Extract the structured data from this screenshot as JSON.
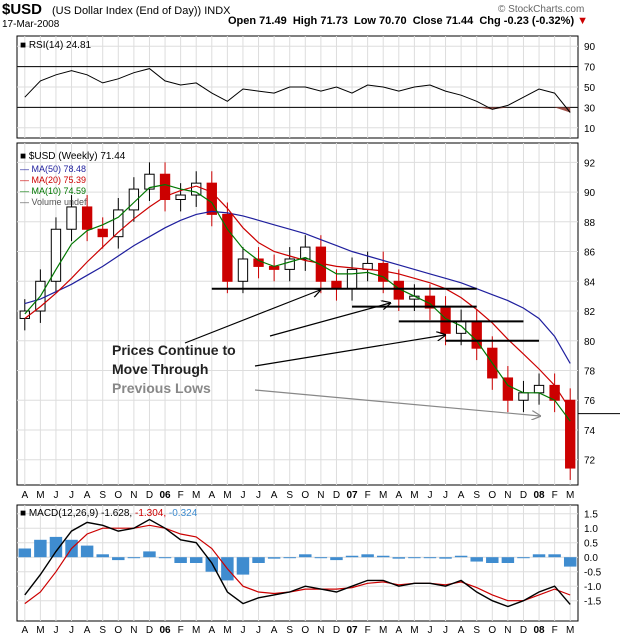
{
  "header": {
    "symbol": "$USD",
    "name": "(US Dollar Index (End of Day))",
    "exchange": "INDX",
    "date": "17-Mar-2008",
    "open": "Open 71.49",
    "high": "High 71.73",
    "low": "Low 70.70",
    "close": "Close 71.44",
    "change": "Chg -0.23 (-0.32%)",
    "brand": "© StockCharts.com"
  },
  "colors": {
    "price_up": "#000000",
    "price_down": "#cc0000",
    "ma50": "#1f1f9e",
    "ma20": "#cc0000",
    "ma10": "#007700",
    "rsi_oversold_fill": "#a0524a",
    "histogram": "#3f8ccf",
    "annotation": "#000000",
    "annotation_gray": "#888888"
  },
  "chart_data": [
    {
      "type": "line",
      "name": "rsi-panel",
      "label": "RSI(14) 24.81",
      "y_ticks": [
        90,
        70,
        50,
        30,
        10
      ],
      "ylim": [
        0,
        100
      ],
      "reference_lines": [
        70,
        30
      ],
      "x": [
        "2005-04",
        "2005-05",
        "2005-06",
        "2005-07",
        "2005-08",
        "2005-09",
        "2005-10",
        "2005-11",
        "2005-12",
        "2006-01",
        "2006-02",
        "2006-03",
        "2006-04",
        "2006-05",
        "2006-06",
        "2006-07",
        "2006-08",
        "2006-09",
        "2006-10",
        "2006-11",
        "2006-12",
        "2007-01",
        "2007-02",
        "2007-03",
        "2007-04",
        "2007-05",
        "2007-06",
        "2007-07",
        "2007-08",
        "2007-09",
        "2007-10",
        "2007-11",
        "2007-12",
        "2008-01",
        "2008-02",
        "2008-03"
      ],
      "series": [
        {
          "values": [
            40,
            56,
            62,
            66,
            62,
            54,
            58,
            64,
            68,
            56,
            52,
            54,
            44,
            36,
            48,
            46,
            44,
            50,
            50,
            46,
            50,
            44,
            52,
            50,
            46,
            50,
            52,
            46,
            42,
            36,
            28,
            32,
            40,
            48,
            44,
            25
          ]
        }
      ]
    },
    {
      "type": "candlestick",
      "name": "price-panel",
      "title": "$USD (Weekly) 71.44",
      "y_ticks": [
        92,
        90,
        88,
        86,
        84,
        82,
        80,
        78,
        76,
        74,
        72
      ],
      "ylim": [
        70.3,
        93.3
      ],
      "x_labels": [
        "A",
        "M",
        "J",
        "J",
        "A",
        "S",
        "O",
        "N",
        "D",
        "06",
        "F",
        "M",
        "A",
        "M",
        "J",
        "J",
        "A",
        "S",
        "O",
        "N",
        "D",
        "07",
        "F",
        "M",
        "A",
        "M",
        "J",
        "J",
        "A",
        "S",
        "O",
        "N",
        "D",
        "08",
        "F",
        "M"
      ],
      "legend": [
        "MA(50) 78.48",
        "MA(20) 75.39",
        "MA(10) 74.59",
        "Volume undef"
      ],
      "close": [
        82.0,
        84.0,
        87.5,
        89.0,
        87.5,
        87.0,
        88.8,
        90.2,
        91.2,
        89.5,
        89.8,
        90.6,
        88.5,
        84.0,
        85.5,
        85.0,
        84.8,
        85.5,
        86.3,
        84.0,
        83.5,
        84.8,
        85.2,
        84.0,
        82.8,
        83.0,
        82.2,
        80.5,
        81.3,
        79.5,
        77.5,
        76.0,
        76.5,
        77.0,
        76.0,
        71.44
      ],
      "series": [
        {
          "name": "MA(50) 78.48",
          "values": [
            82.5,
            82.8,
            83.3,
            83.8,
            84.4,
            85.0,
            85.7,
            86.4,
            87.0,
            87.6,
            88.1,
            88.5,
            88.7,
            88.6,
            88.4,
            88.1,
            87.8,
            87.5,
            87.2,
            86.8,
            86.4,
            86.0,
            85.7,
            85.4,
            85.1,
            84.8,
            84.5,
            84.2,
            83.9,
            83.5,
            83.1,
            82.7,
            82.2,
            81.5,
            80.3,
            78.48
          ]
        },
        {
          "name": "MA(20) 75.39",
          "values": [
            81.5,
            82.3,
            83.2,
            84.2,
            85.3,
            86.3,
            87.3,
            88.2,
            89.0,
            89.7,
            90.1,
            90.4,
            90.0,
            88.9,
            87.6,
            86.6,
            86.0,
            85.7,
            85.4,
            85.2,
            85.0,
            84.9,
            84.8,
            84.7,
            84.5,
            84.2,
            83.9,
            83.5,
            82.9,
            82.1,
            81.2,
            80.1,
            79.1,
            78.1,
            77.0,
            75.39
          ]
        },
        {
          "name": "MA(10) 74.59",
          "values": [
            81.8,
            83.0,
            84.8,
            86.5,
            87.4,
            87.8,
            88.3,
            89.3,
            90.3,
            90.5,
            90.2,
            90.0,
            89.3,
            87.5,
            86.2,
            85.4,
            85.0,
            85.3,
            85.6,
            85.1,
            84.5,
            84.5,
            84.6,
            84.3,
            83.5,
            83.0,
            82.5,
            81.5,
            81.0,
            80.0,
            78.5,
            77.0,
            76.5,
            76.5,
            76.0,
            74.59
          ]
        }
      ],
      "support_levels": [
        83.5,
        82.3,
        81.3,
        80.0
      ],
      "annotations": [
        "Prices Continue to",
        "Move Through",
        "Previous Lows"
      ]
    },
    {
      "type": "line",
      "name": "macd-panel",
      "label": "MACD(12,26,9)",
      "macd_value": "-1.628",
      "signal_value": "-1.304",
      "hist_value": "-0.324",
      "y_ticks": [
        1.5,
        1.0,
        0.5,
        0.0,
        -0.5,
        -1.0,
        -1.5
      ],
      "ylim": [
        -2.2,
        1.8
      ],
      "x_labels": [
        "A",
        "M",
        "J",
        "J",
        "A",
        "S",
        "O",
        "N",
        "D",
        "06",
        "F",
        "M",
        "A",
        "M",
        "J",
        "J",
        "A",
        "S",
        "O",
        "N",
        "D",
        "07",
        "F",
        "M",
        "A",
        "M",
        "J",
        "J",
        "A",
        "S",
        "O",
        "N",
        "D",
        "08",
        "F",
        "M"
      ],
      "series": [
        {
          "name": "MACD",
          "values": [
            -1.3,
            -0.6,
            0.2,
            0.9,
            1.2,
            1.1,
            0.9,
            1.0,
            1.3,
            1.0,
            0.6,
            0.5,
            -0.2,
            -1.2,
            -1.6,
            -1.4,
            -1.3,
            -1.2,
            -1.0,
            -1.1,
            -1.2,
            -1.0,
            -0.8,
            -0.8,
            -1.0,
            -0.9,
            -0.9,
            -1.0,
            -0.8,
            -1.2,
            -1.5,
            -1.7,
            -1.5,
            -1.2,
            -1.0,
            -1.628
          ]
        },
        {
          "name": "Signal",
          "values": [
            -1.6,
            -1.2,
            -0.5,
            0.3,
            0.8,
            1.0,
            1.0,
            1.0,
            1.1,
            1.0,
            0.8,
            0.7,
            0.3,
            -0.4,
            -1.0,
            -1.2,
            -1.25,
            -1.2,
            -1.1,
            -1.1,
            -1.1,
            -1.05,
            -0.9,
            -0.85,
            -0.95,
            -0.9,
            -0.9,
            -0.95,
            -0.85,
            -1.05,
            -1.3,
            -1.5,
            -1.5,
            -1.3,
            -1.1,
            -1.304
          ]
        },
        {
          "name": "Histogram",
          "values": [
            0.3,
            0.6,
            0.7,
            0.6,
            0.4,
            0.1,
            -0.1,
            0.0,
            0.2,
            0.0,
            -0.2,
            -0.2,
            -0.5,
            -0.8,
            -0.6,
            -0.2,
            -0.05,
            0.0,
            0.1,
            0.0,
            -0.1,
            0.05,
            0.1,
            0.05,
            -0.05,
            0.0,
            0.0,
            -0.05,
            0.05,
            -0.15,
            -0.2,
            -0.2,
            0.0,
            0.1,
            0.1,
            -0.324
          ]
        }
      ]
    }
  ]
}
